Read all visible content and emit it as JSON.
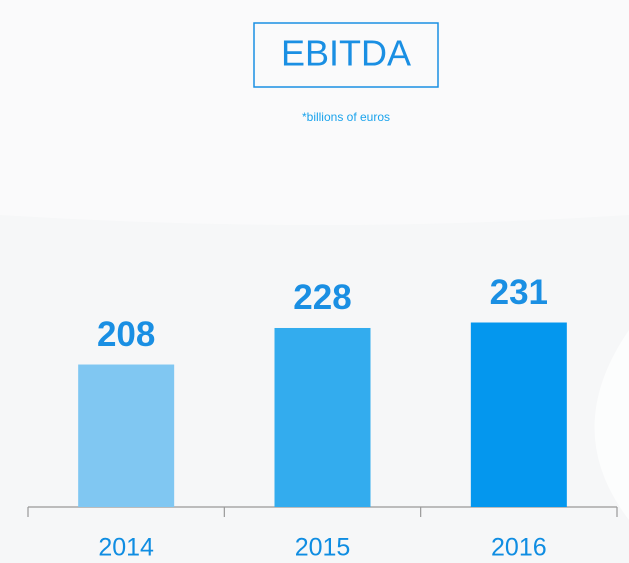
{
  "chart_data": {
    "type": "bar",
    "title": "EBITDA",
    "subtitle": "*billions of euros",
    "categories": [
      "2014",
      "2015",
      "2016"
    ],
    "values": [
      208,
      228,
      231
    ],
    "colors": [
      "#80c7f2",
      "#33acee",
      "#0497ee"
    ],
    "ylim": [
      130,
      280
    ]
  }
}
